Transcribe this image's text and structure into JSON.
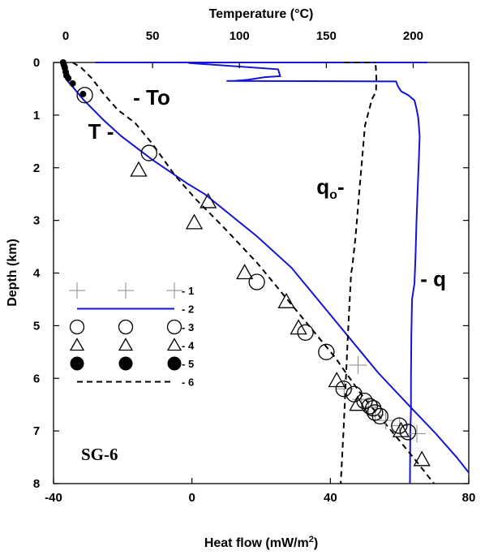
{
  "chart_data": {
    "type": "line",
    "title": "",
    "well_label": "SG-6",
    "bottom_axis": {
      "label": "Heat flow (mW/m2)",
      "label_main": "Heat flow (mW/m",
      "label_sup": "2",
      "label_end": ")",
      "range": [
        -40,
        80
      ],
      "ticks": [
        -40,
        0,
        40,
        80
      ],
      "tick_labels": [
        "-40",
        "0",
        "40",
        "80"
      ]
    },
    "top_axis": {
      "label": "Temperature (°C)",
      "range": [
        -7,
        232
      ],
      "ticks": [
        0,
        50,
        100,
        150,
        200
      ],
      "tick_labels": [
        "0",
        "50",
        "100",
        "150",
        "200"
      ]
    },
    "y_axis": {
      "label": "Depth (km)",
      "range": [
        0,
        8
      ],
      "inverted": true,
      "ticks": [
        0,
        1,
        2,
        3,
        4,
        5,
        6,
        7,
        8
      ],
      "tick_labels": [
        "0",
        "1",
        "2",
        "3",
        "4",
        "5",
        "6",
        "7",
        "8"
      ]
    },
    "annotations": [
      {
        "text": "- To",
        "depth": 0.8,
        "heat_flow": -17
      },
      {
        "text": "T -",
        "depth": 1.45,
        "heat_flow": -30
      },
      {
        "text": "qo-",
        "depth": 2.5,
        "heat_flow": 36,
        "main": "q",
        "sub": "o",
        "tail": "-"
      },
      {
        "text": "- q",
        "depth": 4.25,
        "heat_flow": 66
      }
    ],
    "legend": [
      {
        "marker": "plus",
        "label": "- 1"
      },
      {
        "marker": "solid-line",
        "label": "- 2"
      },
      {
        "marker": "open-circle",
        "label": "- 3"
      },
      {
        "marker": "open-triangle",
        "label": "- 4"
      },
      {
        "marker": "filled-circle",
        "label": "- 5"
      },
      {
        "marker": "dashed-line",
        "label": "- 6"
      }
    ],
    "series": [
      {
        "name": "1",
        "axis": "heat_flow",
        "style": "plus",
        "points": [
          [
            48,
            5.75
          ],
          [
            44,
            6.2
          ],
          [
            49,
            6.4
          ],
          [
            51,
            6.55
          ],
          [
            53,
            6.7
          ],
          [
            56,
            6.8
          ],
          [
            60,
            6.9
          ],
          [
            65,
            7.05
          ]
        ]
      },
      {
        "name": "q",
        "axis": "heat_flow",
        "style": "solid-blue",
        "points": [
          [
            -28,
            0.0
          ],
          [
            30,
            0.0
          ],
          [
            55,
            0.0
          ],
          [
            68,
            0.0
          ],
          [
            -1,
            0.01
          ],
          [
            24.9,
            0.13
          ],
          [
            25.5,
            0.26
          ],
          [
            21,
            0.28
          ],
          [
            16,
            0.33
          ],
          [
            12,
            0.35
          ],
          [
            10,
            0.35
          ],
          [
            59,
            0.36
          ],
          [
            59.5,
            0.45
          ],
          [
            60.5,
            0.55
          ],
          [
            62.5,
            0.62
          ],
          [
            64.3,
            0.72
          ],
          [
            64.8,
            0.85
          ],
          [
            65.4,
            1.05
          ],
          [
            65.8,
            1.4
          ],
          [
            65.6,
            1.8
          ],
          [
            65.3,
            2.3
          ],
          [
            64.9,
            3.0
          ],
          [
            64.6,
            3.7
          ],
          [
            64.3,
            4.2
          ],
          [
            63.6,
            4.5
          ],
          [
            63.4,
            5.2
          ],
          [
            63.3,
            6.0
          ],
          [
            63.3,
            6.6
          ],
          [
            63.1,
            7.0
          ],
          [
            63,
            8.0
          ]
        ],
        "segments": [
          [
            0,
            3
          ],
          [
            4,
            29
          ]
        ]
      },
      {
        "name": "T",
        "axis": "temperature",
        "style": "solid-blue",
        "points": [
          [
            1,
            0.35
          ],
          [
            5,
            0.5
          ],
          [
            10,
            0.7
          ],
          [
            22,
            1.1
          ],
          [
            32,
            1.4
          ],
          [
            50,
            1.85
          ],
          [
            70,
            2.3
          ],
          [
            80,
            2.5
          ],
          [
            110,
            3.3
          ],
          [
            130,
            3.9
          ],
          [
            150,
            4.7
          ],
          [
            170,
            5.5
          ],
          [
            180,
            5.9
          ],
          [
            200,
            6.6
          ],
          [
            213,
            7.05
          ],
          [
            225,
            7.5
          ],
          [
            237,
            8.0
          ]
        ]
      },
      {
        "name": "3",
        "axis": "temperature",
        "style": "open-circle",
        "points": [
          [
            11,
            0.62
          ],
          [
            48,
            1.72
          ],
          [
            110,
            4.17
          ],
          [
            138,
            5.13
          ],
          [
            150,
            5.5
          ],
          [
            160,
            6.2
          ],
          [
            166,
            6.3
          ],
          [
            172,
            6.43
          ],
          [
            175,
            6.53
          ],
          [
            177,
            6.57
          ],
          [
            178,
            6.65
          ],
          [
            181,
            6.72
          ],
          [
            192,
            6.9
          ],
          [
            197,
            7.02
          ]
        ]
      },
      {
        "name": "4",
        "axis": "temperature",
        "style": "open-triangle",
        "points": [
          [
            42,
            2.05
          ],
          [
            82,
            2.65
          ],
          [
            74,
            3.05
          ],
          [
            103,
            4.0
          ],
          [
            127,
            4.55
          ],
          [
            134,
            5.05
          ],
          [
            156,
            6.05
          ],
          [
            168,
            6.5
          ],
          [
            193,
            7.0
          ],
          [
            205,
            7.55
          ]
        ]
      },
      {
        "name": "5",
        "axis": "temperature",
        "style": "filled-circle",
        "points": [
          [
            -1.5,
            0.0
          ],
          [
            -1,
            0.05
          ],
          [
            -0.5,
            0.1
          ],
          [
            0,
            0.18
          ],
          [
            0.5,
            0.25
          ],
          [
            1.5,
            0.3
          ],
          [
            4,
            0.4
          ],
          [
            10,
            0.6
          ]
        ]
      },
      {
        "name": "To",
        "axis": "temperature",
        "style": "dashed",
        "points": [
          [
            4,
            0.0
          ],
          [
            9,
            0.1
          ],
          [
            15,
            0.3
          ],
          [
            22,
            0.6
          ],
          [
            30,
            0.9
          ],
          [
            40,
            1.15
          ],
          [
            50,
            1.55
          ],
          [
            63,
            2.15
          ],
          [
            75,
            2.6
          ],
          [
            90,
            3.1
          ],
          [
            110,
            3.8
          ],
          [
            125,
            4.4
          ],
          [
            140,
            5.0
          ],
          [
            155,
            5.6
          ],
          [
            170,
            6.3
          ],
          [
            185,
            6.9
          ],
          [
            200,
            7.5
          ],
          [
            212,
            8.0
          ]
        ]
      },
      {
        "name": "qo",
        "axis": "heat_flow",
        "style": "dashed",
        "points": [
          [
            44,
            0.0
          ],
          [
            53,
            0.0
          ],
          [
            53.1,
            0.05
          ],
          [
            53.3,
            0.3
          ],
          [
            53.2,
            0.55
          ],
          [
            52,
            0.7
          ],
          [
            50,
            1.2
          ],
          [
            48.3,
            2.5
          ],
          [
            47.3,
            3.3
          ],
          [
            46.3,
            3.9
          ],
          [
            46.0,
            4.0
          ],
          [
            45.2,
            5.0
          ],
          [
            44.5,
            6.0
          ],
          [
            43.8,
            7.0
          ],
          [
            43,
            8.0
          ]
        ],
        "segments": [
          [
            0,
            1
          ],
          [
            2,
            14
          ]
        ]
      }
    ]
  }
}
